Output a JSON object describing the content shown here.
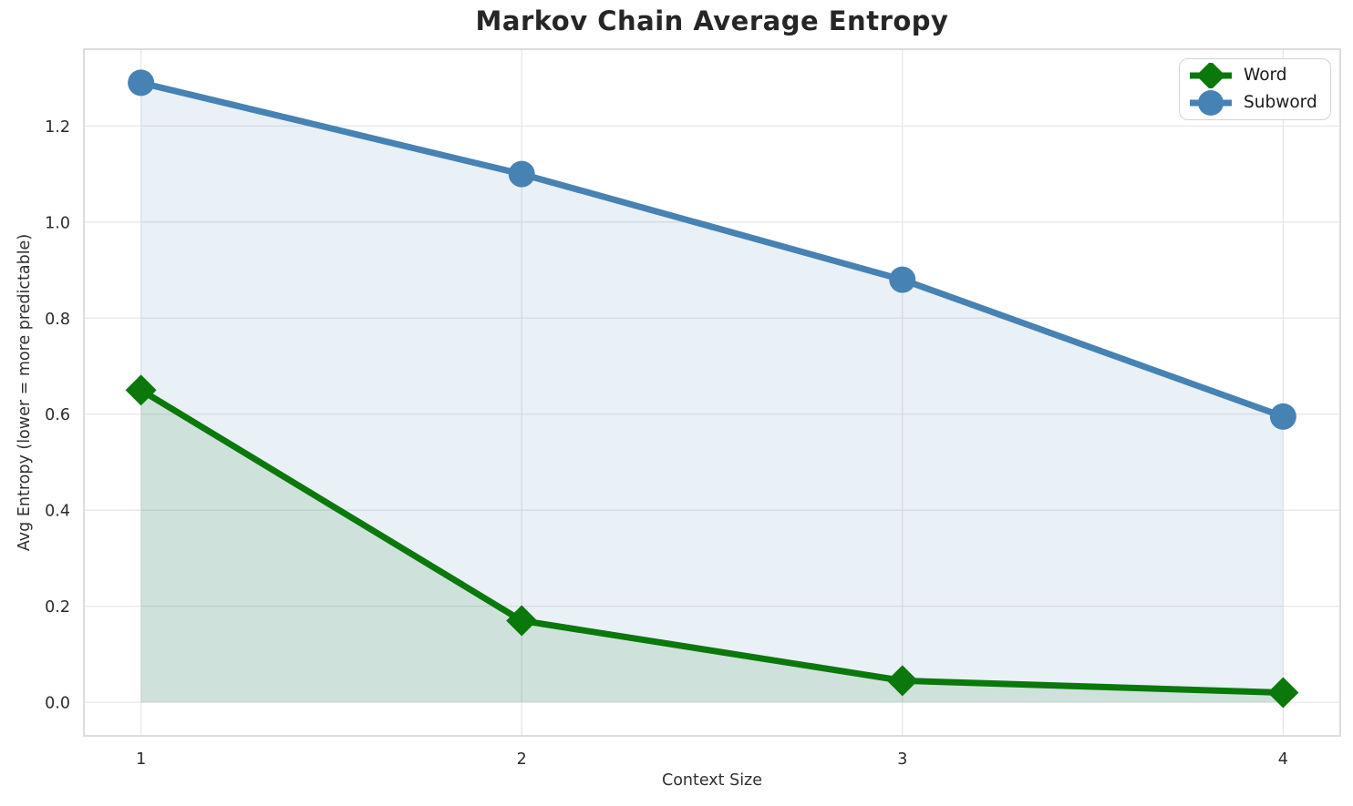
{
  "title": "Markov Chain Average Entropy",
  "colors": {
    "word": "#0a780a",
    "subword": "#4682b4",
    "grid": "#e7e7e7",
    "spine": "#d4d4d4",
    "tick_text": "#2b2b2b",
    "background": "#ffffff"
  },
  "chart_data": {
    "type": "line",
    "title": "Markov Chain Average Entropy",
    "xlabel": "Context Size",
    "ylabel": "Avg Entropy (lower = more predictable)",
    "x": [
      1,
      2,
      3,
      4
    ],
    "series": [
      {
        "name": "Word",
        "color": "#0a780a",
        "marker": "diamond",
        "values": [
          0.65,
          0.17,
          0.045,
          0.02
        ],
        "area_fill": true
      },
      {
        "name": "Subword",
        "color": "#4682b4",
        "marker": "circle",
        "values": [
          1.29,
          1.1,
          0.88,
          0.595
        ],
        "area_fill": true
      }
    ],
    "xticks": [
      1,
      2,
      3,
      4
    ],
    "yticks": [
      0.0,
      0.2,
      0.4,
      0.6,
      0.8,
      1.0,
      1.2
    ],
    "xlim": [
      0.85,
      4.15
    ],
    "ylim": [
      -0.07,
      1.36
    ],
    "grid": true,
    "fill_opacity": 0.12,
    "fill_baseline": 0,
    "legend_position": "upper right"
  }
}
